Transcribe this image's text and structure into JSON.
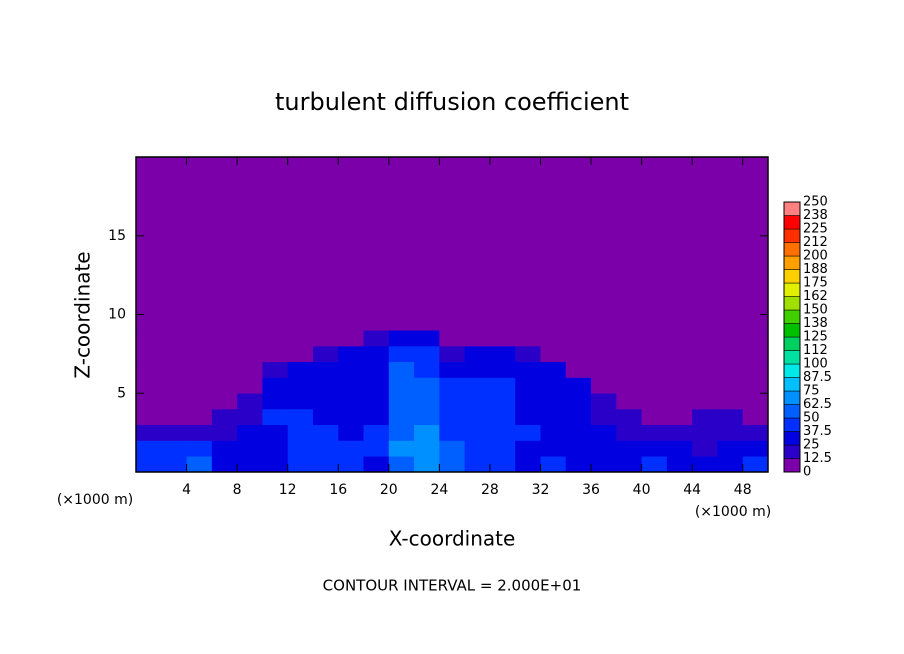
{
  "chart_data": {
    "type": "contour",
    "title": "turbulent diffusion coefficient",
    "x_label": "X-coordinate",
    "y_label": "Z-coordinate",
    "x_unit_left": "(×1000 m)",
    "x_unit_right": "(×1000 m)",
    "footer": "CONTOUR INTERVAL = 2.000E+01",
    "xlim": [
      0,
      50
    ],
    "ylim": [
      0,
      20
    ],
    "xticks": [
      4,
      8,
      12,
      16,
      20,
      24,
      28,
      32,
      36,
      40,
      44,
      48
    ],
    "yticks": [
      5,
      10,
      15
    ],
    "x": [
      1,
      3,
      5,
      7,
      9,
      11,
      13,
      15,
      17,
      19,
      21,
      23,
      25,
      27,
      29,
      31,
      33,
      35,
      37,
      39,
      41,
      43,
      45,
      47,
      49
    ],
    "y": [
      0.5,
      1.5,
      2.5,
      3.5,
      4.5,
      5.5,
      6.5,
      7.5,
      8.5,
      9.5
    ],
    "z": [
      [
        40,
        45,
        50,
        30,
        30,
        35,
        40,
        45,
        40,
        35,
        60,
        70,
        55,
        45,
        40,
        35,
        40,
        30,
        30,
        35,
        40,
        30,
        30,
        35,
        40
      ],
      [
        45,
        45,
        45,
        30,
        30,
        35,
        40,
        40,
        40,
        40,
        65,
        70,
        50,
        45,
        40,
        35,
        35,
        30,
        30,
        30,
        30,
        25,
        20,
        30,
        35
      ],
      [
        20,
        20,
        15,
        20,
        25,
        35,
        40,
        40,
        35,
        40,
        60,
        65,
        45,
        45,
        40,
        40,
        35,
        30,
        25,
        20,
        15,
        15,
        20,
        20,
        15
      ],
      [
        10,
        10,
        10,
        15,
        20,
        40,
        40,
        35,
        30,
        35,
        55,
        60,
        40,
        45,
        40,
        35,
        30,
        25,
        20,
        15,
        10,
        10,
        15,
        20,
        10
      ],
      [
        5,
        10,
        10,
        10,
        15,
        35,
        35,
        35,
        35,
        35,
        55,
        55,
        45,
        40,
        40,
        35,
        35,
        30,
        15,
        10,
        5,
        10,
        10,
        10,
        5
      ],
      [
        0,
        5,
        5,
        5,
        10,
        30,
        35,
        35,
        35,
        35,
        50,
        50,
        40,
        40,
        40,
        35,
        35,
        30,
        10,
        5,
        0,
        0,
        5,
        0,
        0
      ],
      [
        0,
        0,
        0,
        0,
        0,
        20,
        30,
        30,
        30,
        35,
        50,
        45,
        35,
        35,
        35,
        30,
        25,
        10,
        0,
        0,
        0,
        0,
        0,
        0,
        0
      ],
      [
        0,
        0,
        0,
        0,
        0,
        0,
        10,
        20,
        25,
        30,
        45,
        40,
        20,
        30,
        30,
        20,
        10,
        0,
        0,
        0,
        0,
        0,
        0,
        0,
        0
      ],
      [
        0,
        0,
        0,
        0,
        0,
        0,
        0,
        0,
        5,
        15,
        30,
        25,
        5,
        5,
        10,
        5,
        0,
        0,
        0,
        0,
        0,
        0,
        0,
        0,
        0
      ],
      [
        0,
        0,
        0,
        0,
        0,
        0,
        0,
        0,
        0,
        0,
        0,
        10,
        10,
        0,
        0,
        0,
        0,
        0,
        0,
        0,
        0,
        0,
        0,
        0,
        0
      ]
    ],
    "colorbar_ticks": [
      0,
      12.5,
      25,
      {
        "value": 37.5,
        "label": "37.5"
      },
      50,
      62.5,
      75,
      87.5,
      100,
      {
        "value": 112.5,
        "label": "112"
      },
      125,
      {
        "value": 137.5,
        "label": "138"
      },
      150,
      {
        "value": 162.5,
        "label": "162"
      },
      175,
      {
        "value": 187.5,
        "label": "188"
      },
      200,
      {
        "value": 212.5,
        "label": "212"
      },
      225,
      {
        "value": 237.5,
        "label": "238"
      },
      250
    ],
    "colorbar_colors": [
      "#7b00a9",
      "#2a00c8",
      "#0000e0",
      "#0030ff",
      "#0060ff",
      "#0090ff",
      "#00c0ff",
      "#00e8e8",
      "#00e0a0",
      "#00d060",
      "#00c000",
      "#40d000",
      "#a0e000",
      "#e0f000",
      "#ffd000",
      "#ffa000",
      "#ff7000",
      "#ff3000",
      "#ff0000",
      "#ff8080"
    ]
  }
}
